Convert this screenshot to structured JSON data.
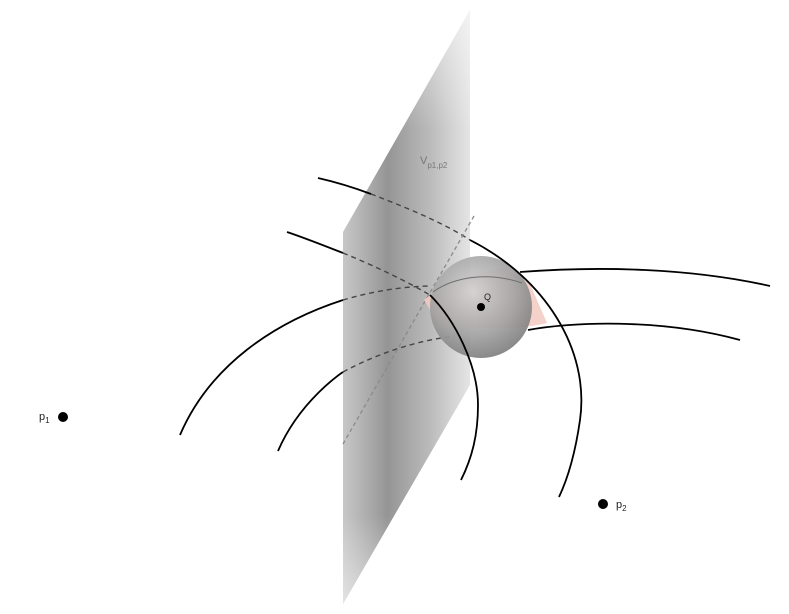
{
  "points": {
    "p1": {
      "name": "p",
      "sub": "1"
    },
    "p2": {
      "name": "p",
      "sub": "2"
    },
    "q": {
      "name": "Q"
    }
  },
  "plane": {
    "name": "V",
    "sub": "p1,p2"
  },
  "colors": {
    "curve": "#000000",
    "dashed": "#444444",
    "plane": "#9a9a9a",
    "ball": "#8c8c8c",
    "lens": "#f2c9c0"
  }
}
